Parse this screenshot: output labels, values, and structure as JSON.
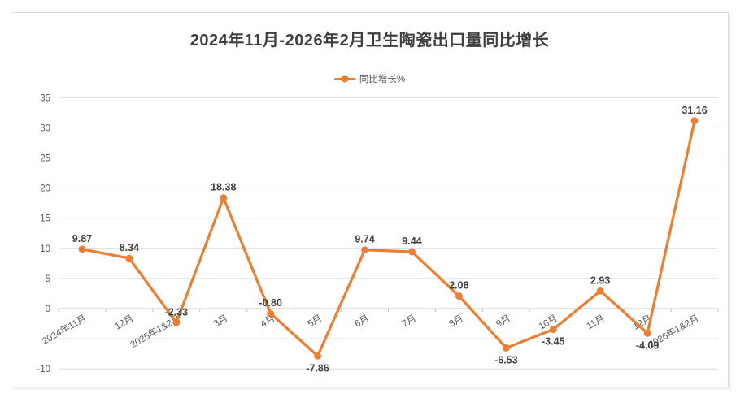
{
  "chart_data": {
    "type": "line",
    "title": "2024年11月-2026年2月卫生陶瓷出口量同比增长",
    "legend": {
      "label": "同比增长%",
      "position": "top-center"
    },
    "categories": [
      "2024年11月",
      "12月",
      "2025年1&2月",
      "3月",
      "4月",
      "5月",
      "6月",
      "7月",
      "8月",
      "9月",
      "10月",
      "11月",
      "12月",
      "2026年1&2月"
    ],
    "series": [
      {
        "name": "同比增长%",
        "values": [
          9.87,
          8.34,
          -2.33,
          18.38,
          -0.8,
          -7.86,
          9.74,
          9.44,
          2.08,
          -6.53,
          -3.45,
          2.93,
          -4.09,
          31.16
        ],
        "label_positions": [
          "above",
          "above",
          "above",
          "above",
          "above",
          "below",
          "above",
          "above",
          "above",
          "below",
          "below",
          "above",
          "below",
          "above"
        ],
        "color": "#ED7D31"
      }
    ],
    "ylim": [
      -10,
      35
    ],
    "ytick_step": 5,
    "ytick_labels": [
      35,
      30,
      25,
      20,
      15,
      10,
      5,
      0,
      -10
    ],
    "grid": "horizontal",
    "xlabel": "",
    "ylabel": "",
    "colors": {
      "series_line": "#ED7D31",
      "data_label": "#3f3f3f",
      "axis_text": "#595959",
      "gridline": "#d9d9d9",
      "zero_axis": "#c3c3c3",
      "title_text": "#3f3f3f",
      "card_border": "#d9d9d9",
      "background": "#ffffff"
    }
  }
}
